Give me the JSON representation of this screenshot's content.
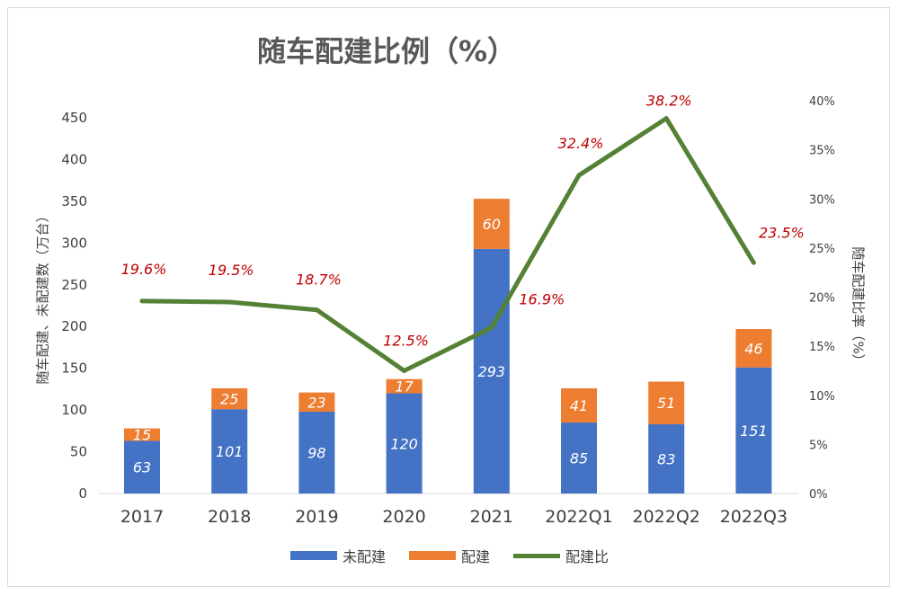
{
  "chart_data": {
    "type": "bar",
    "stacked": true,
    "title": "随车配建比例（%）",
    "categories": [
      "2017",
      "2018",
      "2019",
      "2020",
      "2021",
      "2022Q1",
      "2022Q2",
      "2022Q3"
    ],
    "ylabel": "随车配建、未配建数（万台）",
    "y2label": "随车配建比率（%）",
    "ylim": [
      0,
      450
    ],
    "yticks": [
      "0",
      "50",
      "100",
      "150",
      "200",
      "250",
      "300",
      "350",
      "400",
      "450"
    ],
    "y2lim": [
      0,
      40
    ],
    "y2ticks": [
      "0%",
      "5%",
      "10%",
      "15%",
      "20%",
      "25%",
      "30%",
      "35%",
      "40%"
    ],
    "grid": false,
    "legend_position": "bottom",
    "series": [
      {
        "name": "未配建",
        "type": "bar",
        "color": "#4472c4",
        "values": [
          63,
          101,
          98,
          120,
          293,
          85,
          83,
          151
        ]
      },
      {
        "name": "配建",
        "type": "bar",
        "color": "#ed7d31",
        "values": [
          15,
          25,
          23,
          17,
          60,
          41,
          51,
          46
        ]
      },
      {
        "name": "配建比",
        "type": "line",
        "axis": "right",
        "color": "#548235",
        "values": [
          19.6,
          19.5,
          18.7,
          12.5,
          16.9,
          32.4,
          38.2,
          23.5
        ],
        "labels": [
          "19.6%",
          "19.5%",
          "18.7%",
          "12.5%",
          "16.9%",
          "32.4%",
          "38.2%",
          "23.5%"
        ],
        "label_color": "#c00000"
      }
    ]
  }
}
